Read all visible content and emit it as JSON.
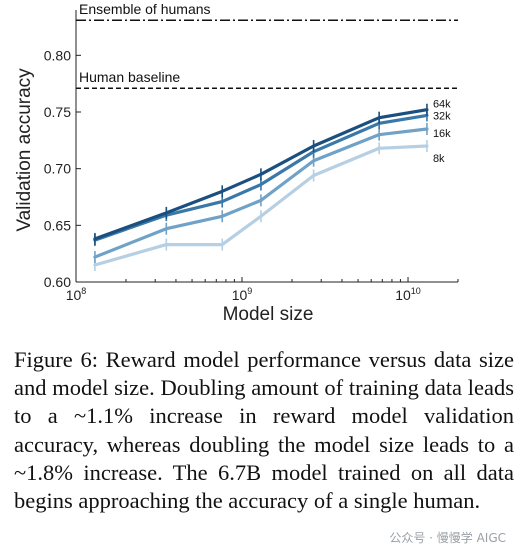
{
  "chart_data": {
    "type": "line",
    "xlabel": "Model size",
    "ylabel": "Validation accuracy",
    "xscale": "log",
    "xlim": [
      100000000,
      20000000000
    ],
    "ylim": [
      0.6,
      0.84
    ],
    "x_ticks": [
      {
        "value": 100000000,
        "base": "10",
        "exp": "8"
      },
      {
        "value": 1000000000,
        "base": "10",
        "exp": "9"
      },
      {
        "value": 10000000000,
        "base": "10",
        "exp": "10"
      }
    ],
    "y_ticks": [
      "0.60",
      "0.65",
      "0.70",
      "0.75",
      "0.80"
    ],
    "x": [
      130000000,
      350000000,
      760000000,
      1300000000,
      2700000000,
      6700000000,
      13000000000
    ],
    "series": [
      {
        "name": "64k",
        "color": "#1a4f80",
        "values": [
          0.638,
          0.661,
          0.68,
          0.695,
          0.72,
          0.745,
          0.752
        ]
      },
      {
        "name": "32k",
        "color": "#3a78a8",
        "values": [
          0.637,
          0.659,
          0.671,
          0.686,
          0.715,
          0.74,
          0.747
        ]
      },
      {
        "name": "16k",
        "color": "#6fa2c6",
        "values": [
          0.622,
          0.647,
          0.658,
          0.672,
          0.707,
          0.73,
          0.735
        ]
      },
      {
        "name": "8k",
        "color": "#b6cfe2",
        "values": [
          0.615,
          0.633,
          0.633,
          0.658,
          0.694,
          0.718,
          0.72
        ]
      }
    ],
    "reference_lines": [
      {
        "label": "Ensemble of humans",
        "value": 0.831,
        "style": "dashdot"
      },
      {
        "label": "Human baseline",
        "value": 0.771,
        "style": "dashed"
      }
    ],
    "grid": false
  },
  "caption": "Figure 6: Reward model performance versus data size and model size. Doubling amount of training data leads to a ~1.1% increase in reward model validation accuracy, whereas doubling the model size leads to a ~1.8% increase. The 6.7B model trained on all data begins approaching the accuracy of a single human.",
  "watermark": "公众号 · 慢慢学 AIGC"
}
